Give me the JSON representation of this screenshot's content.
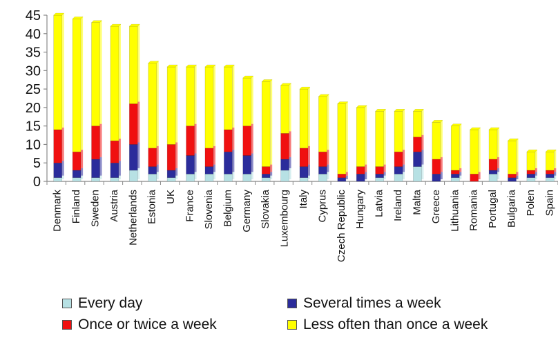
{
  "chart_data": {
    "type": "bar",
    "stacked": true,
    "categories": [
      "Denmark",
      "Finland",
      "Sweden",
      "Austria",
      "Netherlands",
      "Estonia",
      "UK",
      "France",
      "Slovenia",
      "Belgium",
      "Germany",
      "Slovakia",
      "Luxembourg",
      "Italy",
      "Cyprus",
      "Czech Republic",
      "Hungary",
      "Latvia",
      "Ireland",
      "Malta",
      "Greece",
      "Lithuania",
      "Romania",
      "Portugal",
      "Bulgaria",
      "Polen",
      "Spain"
    ],
    "series": [
      {
        "name": "Every day",
        "color": "#b7e1e4",
        "values": [
          1,
          1,
          1,
          1,
          3,
          2,
          1,
          2,
          2,
          2,
          2,
          1,
          3,
          1,
          2,
          0,
          0,
          1,
          2,
          4,
          0,
          1,
          0,
          2,
          0,
          1,
          1
        ]
      },
      {
        "name": "Several times a week",
        "color": "#2b2c9b",
        "values": [
          4,
          2,
          5,
          4,
          7,
          2,
          2,
          5,
          2,
          6,
          5,
          1,
          3,
          3,
          2,
          1,
          2,
          1,
          2,
          4,
          2,
          1,
          0,
          1,
          1,
          1,
          1
        ]
      },
      {
        "name": "Once or twice a week",
        "color": "#f01010",
        "values": [
          9,
          5,
          9,
          6,
          11,
          5,
          7,
          8,
          5,
          6,
          8,
          2,
          7,
          5,
          4,
          1,
          2,
          2,
          4,
          4,
          4,
          1,
          2,
          3,
          1,
          1,
          1
        ]
      },
      {
        "name": "Less often than once a week",
        "color": "#ffff00",
        "values": [
          31,
          36,
          28,
          31,
          21,
          23,
          21,
          16,
          22,
          17,
          13,
          23,
          13,
          16,
          15,
          19,
          16,
          15,
          11,
          7,
          10,
          12,
          12,
          8,
          9,
          5,
          5
        ]
      }
    ],
    "yticks": [
      0,
      5,
      10,
      15,
      20,
      25,
      30,
      35,
      40,
      45
    ],
    "ylim": [
      0,
      45
    ],
    "grid": false,
    "legend_position": "bottom"
  }
}
